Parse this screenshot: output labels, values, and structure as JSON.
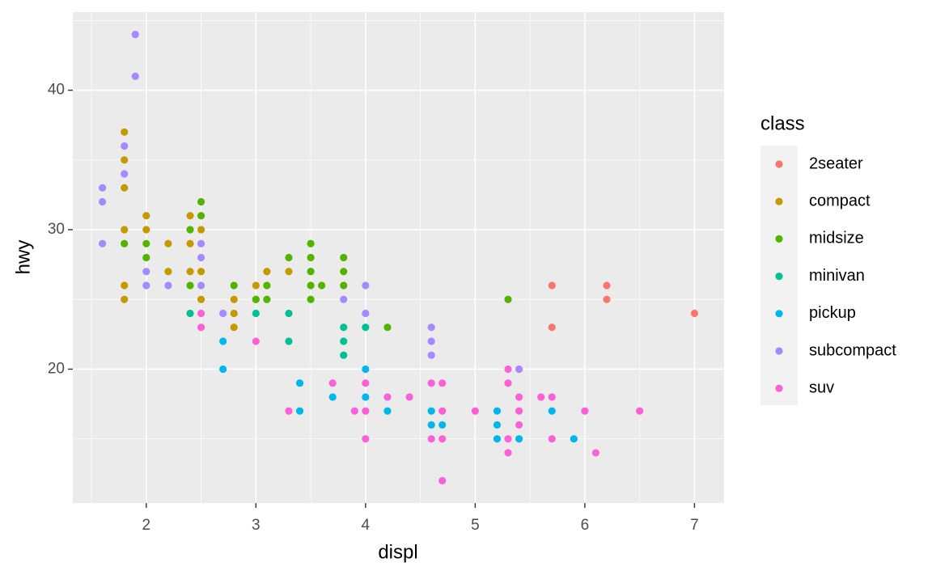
{
  "chart_data": {
    "type": "scatter",
    "x_label": "displ",
    "y_label": "hwy",
    "legend_title": "class",
    "legend": "right",
    "grid": true,
    "xlim": [
      1.33,
      7.27
    ],
    "ylim": [
      10.4,
      45.6
    ],
    "xticks": [
      2,
      3,
      4,
      5,
      6,
      7
    ],
    "yticks": [
      20,
      30,
      40
    ],
    "xminor_ticks": [
      1.5,
      2.5,
      3.5,
      4.5,
      5.5,
      6.5
    ],
    "yminor_ticks": [
      15,
      25,
      35,
      45
    ],
    "series": [
      {
        "name": "2seater",
        "color": "#F8766D",
        "x": [
          5.7,
          5.7,
          6.2,
          6.2,
          7.0
        ],
        "values": [
          26,
          23,
          26,
          25,
          24
        ]
      },
      {
        "name": "compact",
        "color": "#C49A00",
        "x": [
          1.8,
          1.8,
          1.8,
          1.8,
          1.8,
          1.8,
          2.0,
          2.0,
          2.2,
          2.2,
          2.4,
          2.4,
          2.4,
          2.5,
          2.5,
          2.5,
          2.8,
          2.8,
          2.8,
          3.0,
          3.0,
          3.1,
          3.3
        ],
        "values": [
          37,
          35,
          33,
          30,
          26,
          25,
          31,
          30,
          29,
          27,
          31,
          29,
          27,
          30,
          27,
          25,
          25,
          24,
          23,
          26,
          25,
          27,
          27
        ]
      },
      {
        "name": "midsize",
        "color": "#53B400",
        "x": [
          1.8,
          2.0,
          2.0,
          2.4,
          2.4,
          2.5,
          2.5,
          2.8,
          3.0,
          3.1,
          3.1,
          3.3,
          3.5,
          3.5,
          3.5,
          3.5,
          3.5,
          3.6,
          3.8,
          3.8,
          3.8,
          4.2,
          5.3
        ],
        "values": [
          29,
          29,
          28,
          30,
          26,
          32,
          31,
          26,
          25,
          26,
          25,
          28,
          29,
          28,
          27,
          26,
          25,
          26,
          28,
          27,
          26,
          23,
          25
        ]
      },
      {
        "name": "minivan",
        "color": "#00C094",
        "x": [
          2.4,
          3.0,
          3.3,
          3.3,
          3.8,
          3.8,
          3.8,
          4.0
        ],
        "values": [
          24,
          24,
          24,
          22,
          23,
          22,
          21,
          23
        ]
      },
      {
        "name": "pickup",
        "color": "#00B6EB",
        "x": [
          2.7,
          2.7,
          3.4,
          3.4,
          3.7,
          4.0,
          4.0,
          4.2,
          4.6,
          4.6,
          4.7,
          5.2,
          5.2,
          5.2,
          5.4,
          5.7,
          5.9
        ],
        "values": [
          22,
          20,
          19,
          17,
          18,
          20,
          18,
          17,
          17,
          16,
          16,
          17,
          16,
          15,
          15,
          17,
          15
        ]
      },
      {
        "name": "subcompact",
        "color": "#A58AFF",
        "x": [
          1.6,
          1.6,
          1.6,
          1.8,
          1.8,
          1.9,
          1.9,
          2.0,
          2.0,
          2.2,
          2.5,
          2.5,
          2.5,
          2.7,
          3.8,
          4.0,
          4.0,
          4.6,
          4.6,
          4.6,
          5.4
        ],
        "values": [
          33,
          32,
          29,
          36,
          34,
          44,
          41,
          27,
          26,
          26,
          29,
          28,
          26,
          24,
          25,
          26,
          24,
          23,
          22,
          21,
          20
        ]
      },
      {
        "name": "suv",
        "color": "#FB61D7",
        "x": [
          2.5,
          2.5,
          3.0,
          3.3,
          3.7,
          3.9,
          4.0,
          4.0,
          4.0,
          4.2,
          4.4,
          4.6,
          4.6,
          4.7,
          4.7,
          4.7,
          4.7,
          5.0,
          5.3,
          5.3,
          5.3,
          5.3,
          5.4,
          5.4,
          5.4,
          5.6,
          5.7,
          5.7,
          6.0,
          6.1,
          6.5
        ],
        "values": [
          24,
          23,
          22,
          17,
          19,
          17,
          19,
          17,
          15,
          18,
          18,
          19,
          15,
          19,
          17,
          15,
          12,
          17,
          20,
          19,
          15,
          14,
          18,
          17,
          16,
          18,
          18,
          15,
          17,
          14,
          17
        ]
      }
    ]
  }
}
